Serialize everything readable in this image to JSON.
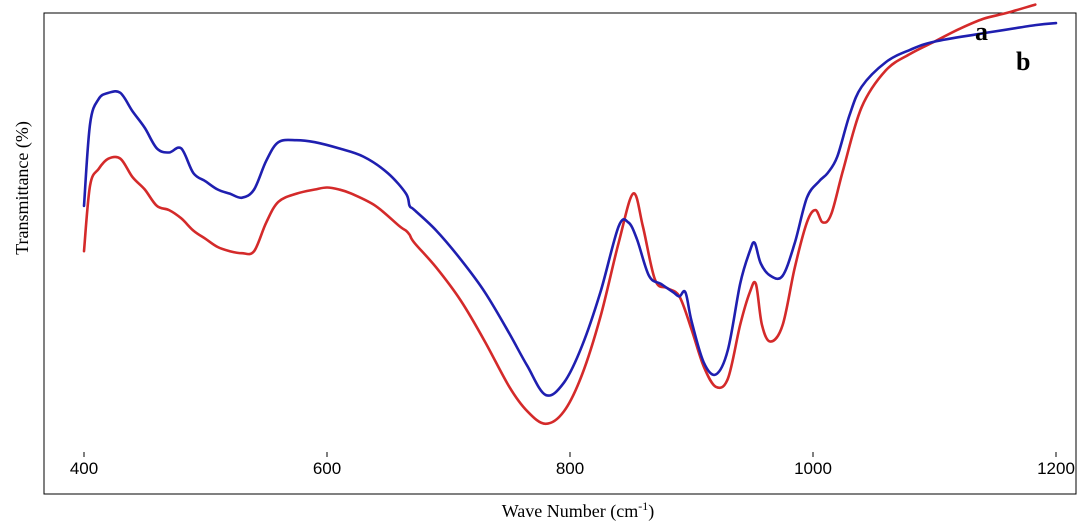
{
  "chart_data": {
    "type": "line",
    "xlabel": "Wave Number (cm",
    "xlabel_sup": "-1",
    "xlabel_close": ")",
    "ylabel": "Transmittance (%)",
    "xlim": [
      400,
      1200
    ],
    "ylim": [
      0,
      100
    ],
    "y_ticks_shown": false,
    "grid": false,
    "x_ticks": [
      400,
      600,
      800,
      1000,
      1200
    ],
    "x_tick_labels": [
      "400",
      "600",
      "800",
      "1000",
      "1200"
    ],
    "colors": {
      "a": "#d42a2a",
      "b": "#1f1fb0",
      "frame": "#000000"
    },
    "series": [
      {
        "name": "a",
        "x": [
          400,
          405,
          412,
          420,
          430,
          440,
          450,
          460,
          470,
          480,
          490,
          500,
          510,
          520,
          530,
          540,
          550,
          560,
          575,
          590,
          600,
          610,
          620,
          640,
          660,
          665,
          668,
          672,
          690,
          710,
          730,
          750,
          765,
          780,
          795,
          810,
          825,
          840,
          852,
          860,
          870,
          880,
          890,
          900,
          910,
          920,
          930,
          940,
          948,
          953,
          958,
          965,
          975,
          985,
          995,
          1002,
          1008,
          1015,
          1025,
          1040,
          1060,
          1080,
          1100,
          1120,
          1140,
          1160,
          1183
        ],
        "y": [
          44,
          60,
          64,
          66.5,
          66.5,
          62,
          59,
          55,
          54,
          52,
          49,
          47,
          45,
          44,
          43.5,
          44,
          51,
          56,
          58,
          59,
          59.5,
          59,
          58,
          55,
          50,
          49,
          48,
          46,
          40,
          32,
          22,
          11,
          5,
          2,
          5,
          14,
          28,
          46,
          58,
          50,
          37,
          35,
          33,
          25,
          16,
          11,
          13,
          26,
          34,
          36,
          26,
          22,
          26,
          40,
          51,
          54,
          51,
          53,
          64,
          79,
          88,
          92,
          95,
          98,
          100.5,
          102,
          104
        ]
      },
      {
        "name": "b",
        "x": [
          400,
          405,
          412,
          420,
          430,
          440,
          450,
          460,
          470,
          480,
          490,
          500,
          510,
          520,
          530,
          540,
          550,
          560,
          575,
          590,
          610,
          630,
          650,
          665,
          668,
          672,
          690,
          710,
          730,
          750,
          765,
          780,
          795,
          810,
          825,
          840,
          848,
          855,
          865,
          875,
          885,
          890,
          895,
          900,
          910,
          920,
          930,
          940,
          948,
          952,
          957,
          965,
          975,
          985,
          995,
          1005,
          1012,
          1020,
          1030,
          1040,
          1060,
          1080,
          1100,
          1140,
          1183,
          1200
        ],
        "y": [
          55,
          75,
          81,
          82.5,
          82.5,
          78,
          74,
          69,
          68,
          69,
          63,
          61,
          59,
          58,
          57,
          59,
          66,
          70.5,
          71,
          70.5,
          69,
          67,
          63,
          58,
          55,
          54,
          49,
          42,
          34,
          24,
          16,
          9,
          12,
          21,
          34,
          50,
          51,
          47,
          38,
          36,
          34,
          33,
          34,
          27,
          17,
          14,
          20,
          36,
          44,
          46,
          41,
          38,
          38,
          46,
          57,
          61,
          63,
          67,
          77,
          84,
          90,
          93,
          95,
          97,
          99,
          99.5
        ]
      }
    ]
  }
}
